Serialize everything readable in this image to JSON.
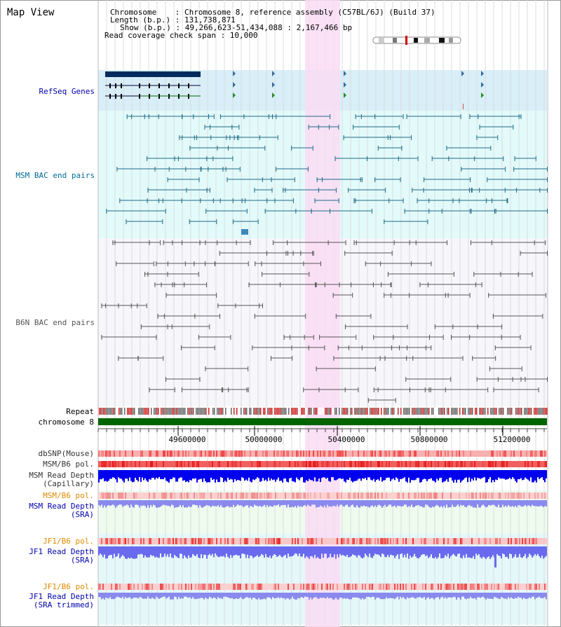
{
  "title": "Map View",
  "info": {
    "chromosome": "Chromosome    : Chromosome 8, reference assembly (C57BL/6J) (Build 37)",
    "length": "Length (b.p.) : 131,738,871",
    "show": "Show (b.p.) : 49,266,623-51,434,088 : 2,167,466 bp",
    "coverage": "Read coverage check span : 10,000"
  },
  "labels": {
    "refseq": "RefSeq Genes",
    "msm_bac": "MSM BAC end pairs",
    "b6n_bac": "B6N BAC end pairs",
    "repeat": "Repeat",
    "chromosome": "chromosome 8",
    "dbsnp": "dbSNP(Mouse)",
    "msm_b6_pol_1": "MSM/B6 pol.",
    "msm_depth_cap_1": "MSM Read Depth",
    "msm_depth_cap_2": "(Capillary)",
    "msm_b6_pol_2": "MSM/B6 pol.",
    "msm_depth_sra_1": "MSM Read Depth",
    "msm_depth_sra_2": "(SRA)",
    "jf1_pol_1": "JF1/B6 pol.",
    "jf1_depth_sra_1": "JF1 Read Depth",
    "jf1_depth_sra_2": "(SRA)",
    "jf1_pol_2": "JF1/B6 pol.",
    "jf1_depth_trim_1": "JF1 Read Depth",
    "jf1_depth_trim_2": "(SRA trimmed)"
  },
  "axis": {
    "ticks": [
      "49600000",
      "50000000",
      "50400000",
      "50800000",
      "51200000"
    ]
  },
  "colors": {
    "blue_label": "#0000aa",
    "orange_label": "#e08a00",
    "highlight": "#f9dcf3",
    "refseq_bg": "#d8eef8",
    "msm_bg": "#e2fafa",
    "b6n_bg": "#f6f6fb",
    "chrom_bar": "#006400",
    "depth_blue": "#0000ee",
    "depth_lilac": "#8a8aee"
  }
}
